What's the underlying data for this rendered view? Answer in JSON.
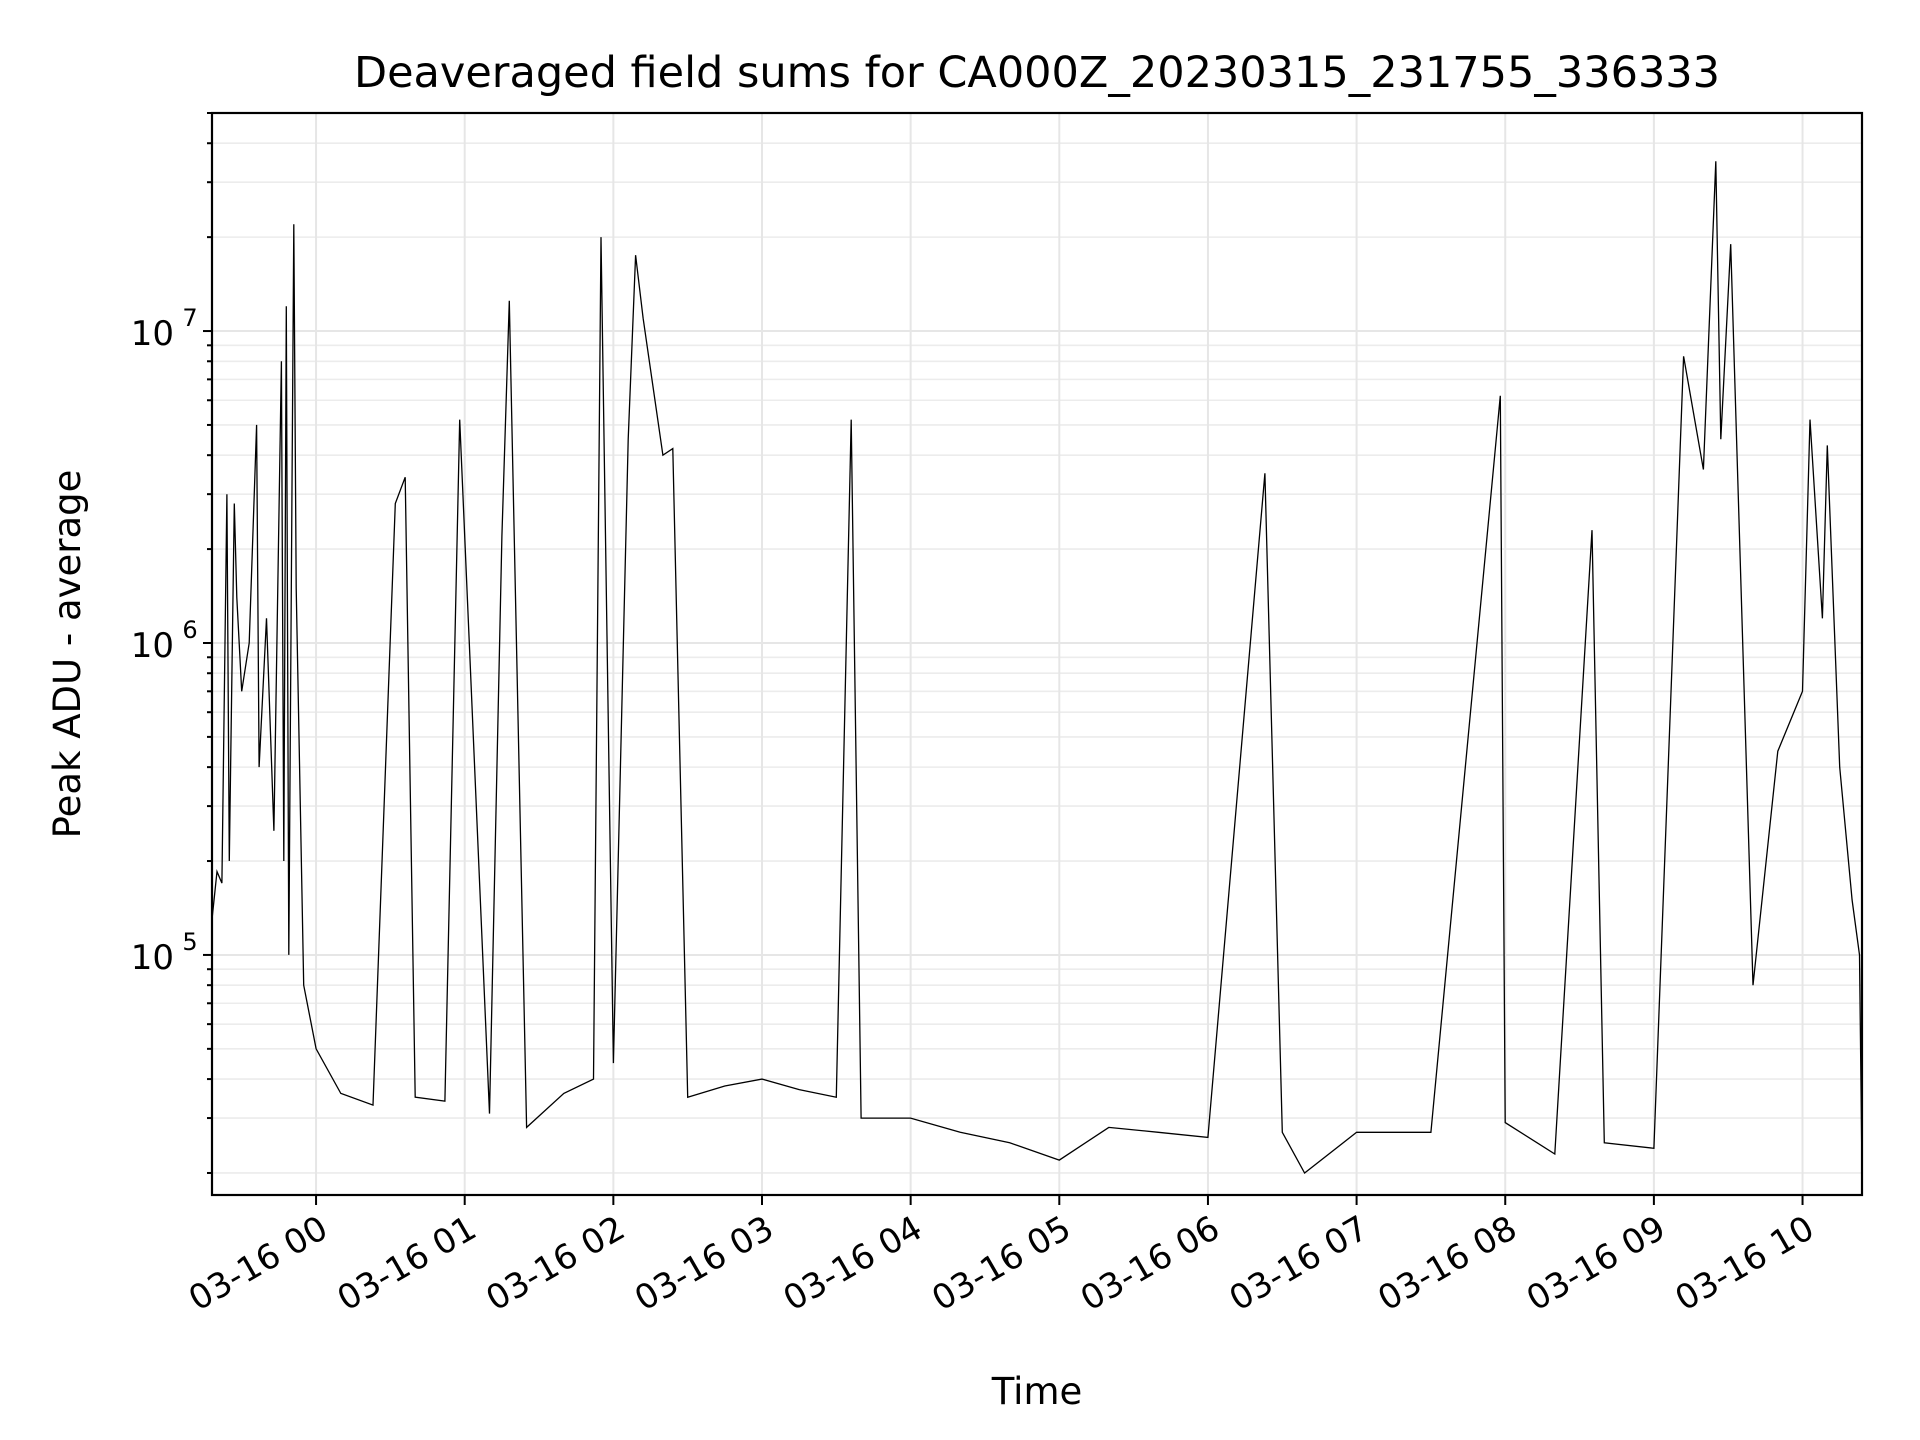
{
  "chart_data": {
    "type": "line",
    "title": "Deaveraged field sums for CA000Z_20230315_231755_336333",
    "xlabel": "Time",
    "ylabel": "Peak ADU - average",
    "yscale": "log",
    "ylim": [
      17000,
      50000000
    ],
    "xlim": [
      "2023-03-15 23:18",
      "2023-03-16 10:24"
    ],
    "grid": true,
    "x_ticks": [
      {
        "value": "2023-03-16 00:00",
        "label": "03-16 00"
      },
      {
        "value": "2023-03-16 01:00",
        "label": "03-16 01"
      },
      {
        "value": "2023-03-16 02:00",
        "label": "03-16 02"
      },
      {
        "value": "2023-03-16 03:00",
        "label": "03-16 03"
      },
      {
        "value": "2023-03-16 04:00",
        "label": "03-16 04"
      },
      {
        "value": "2023-03-16 05:00",
        "label": "03-16 05"
      },
      {
        "value": "2023-03-16 06:00",
        "label": "03-16 06"
      },
      {
        "value": "2023-03-16 07:00",
        "label": "03-16 07"
      },
      {
        "value": "2023-03-16 08:00",
        "label": "03-16 08"
      },
      {
        "value": "2023-03-16 09:00",
        "label": "03-16 09"
      },
      {
        "value": "2023-03-16 10:00",
        "label": "03-16 10"
      }
    ],
    "y_ticks": [
      {
        "value": 100000,
        "base": "10",
        "exp": "5"
      },
      {
        "value": 1000000,
        "base": "10",
        "exp": "6"
      },
      {
        "value": 10000000,
        "base": "10",
        "exp": "7"
      }
    ],
    "series": [
      {
        "color": "#000000",
        "points": [
          [
            "2023-03-15 23:18",
            130000
          ],
          [
            "2023-03-15 23:20",
            185000
          ],
          [
            "2023-03-15 23:22",
            170000
          ],
          [
            "2023-03-15 23:24",
            3000000
          ],
          [
            "2023-03-15 23:25",
            200000
          ],
          [
            "2023-03-15 23:27",
            2800000
          ],
          [
            "2023-03-15 23:28",
            1400000
          ],
          [
            "2023-03-15 23:30",
            700000
          ],
          [
            "2023-03-15 23:33",
            1000000
          ],
          [
            "2023-03-15 23:36",
            5000000
          ],
          [
            "2023-03-15 23:37",
            400000
          ],
          [
            "2023-03-15 23:40",
            1200000
          ],
          [
            "2023-03-15 23:43",
            250000
          ],
          [
            "2023-03-15 23:46",
            8000000
          ],
          [
            "2023-03-15 23:47",
            200000
          ],
          [
            "2023-03-15 23:48",
            12000000
          ],
          [
            "2023-03-15 23:49",
            100000
          ],
          [
            "2023-03-15 23:51",
            22000000
          ],
          [
            "2023-03-15 23:52",
            1500000
          ],
          [
            "2023-03-15 23:55",
            80000
          ],
          [
            "2023-03-16 00:00",
            50000
          ],
          [
            "2023-03-16 00:10",
            36000
          ],
          [
            "2023-03-16 00:23",
            33000
          ],
          [
            "2023-03-16 00:32",
            2800000
          ],
          [
            "2023-03-16 00:36",
            3400000
          ],
          [
            "2023-03-16 00:40",
            35000
          ],
          [
            "2023-03-16 00:52",
            34000
          ],
          [
            "2023-03-16 00:58",
            5200000
          ],
          [
            "2023-03-16 01:10",
            31000
          ],
          [
            "2023-03-16 01:15",
            2200000
          ],
          [
            "2023-03-16 01:18",
            12500000
          ],
          [
            "2023-03-16 01:25",
            28000
          ],
          [
            "2023-03-16 01:40",
            36000
          ],
          [
            "2023-03-16 01:52",
            40000
          ],
          [
            "2023-03-16 01:55",
            20000000
          ],
          [
            "2023-03-16 02:00",
            45000
          ],
          [
            "2023-03-16 02:06",
            4500000
          ],
          [
            "2023-03-16 02:09",
            17500000
          ],
          [
            "2023-03-16 02:12",
            11000000
          ],
          [
            "2023-03-16 02:20",
            4000000
          ],
          [
            "2023-03-16 02:24",
            4200000
          ],
          [
            "2023-03-16 02:30",
            35000
          ],
          [
            "2023-03-16 02:45",
            38000
          ],
          [
            "2023-03-16 03:00",
            40000
          ],
          [
            "2023-03-16 03:15",
            37000
          ],
          [
            "2023-03-16 03:30",
            35000
          ],
          [
            "2023-03-16 03:36",
            5200000
          ],
          [
            "2023-03-16 03:40",
            30000
          ],
          [
            "2023-03-16 04:00",
            30000
          ],
          [
            "2023-03-16 04:20",
            27000
          ],
          [
            "2023-03-16 04:40",
            25000
          ],
          [
            "2023-03-16 05:00",
            22000
          ],
          [
            "2023-03-16 05:20",
            28000
          ],
          [
            "2023-03-16 05:40",
            27000
          ],
          [
            "2023-03-16 06:00",
            26000
          ],
          [
            "2023-03-16 06:23",
            3500000
          ],
          [
            "2023-03-16 06:30",
            27000
          ],
          [
            "2023-03-16 06:39",
            20000
          ],
          [
            "2023-03-16 07:00",
            27000
          ],
          [
            "2023-03-16 07:30",
            27000
          ],
          [
            "2023-03-16 07:58",
            6200000
          ],
          [
            "2023-03-16 08:00",
            29000
          ],
          [
            "2023-03-16 08:20",
            23000
          ],
          [
            "2023-03-16 08:35",
            2300000
          ],
          [
            "2023-03-16 08:40",
            25000
          ],
          [
            "2023-03-16 09:00",
            24000
          ],
          [
            "2023-03-16 09:12",
            8300000
          ],
          [
            "2023-03-16 09:20",
            3600000
          ],
          [
            "2023-03-16 09:25",
            35000000
          ],
          [
            "2023-03-16 09:27",
            4500000
          ],
          [
            "2023-03-16 09:31",
            19000000
          ],
          [
            "2023-03-16 09:40",
            80000
          ],
          [
            "2023-03-16 09:50",
            450000
          ],
          [
            "2023-03-16 10:00",
            700000
          ],
          [
            "2023-03-16 10:03",
            5200000
          ],
          [
            "2023-03-16 10:08",
            1200000
          ],
          [
            "2023-03-16 10:10",
            4300000
          ],
          [
            "2023-03-16 10:15",
            400000
          ],
          [
            "2023-03-16 10:20",
            150000
          ],
          [
            "2023-03-16 10:23",
            100000
          ],
          [
            "2023-03-16 10:24",
            20000
          ]
        ]
      }
    ]
  }
}
